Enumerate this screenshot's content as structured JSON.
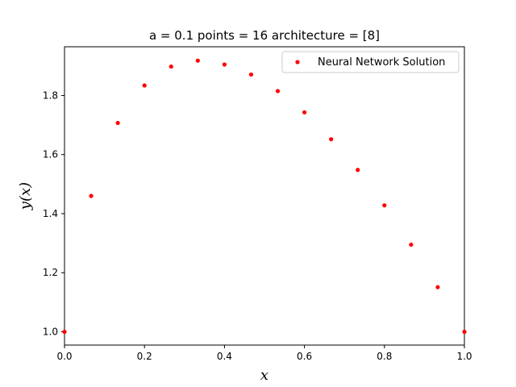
{
  "chart_data": {
    "type": "scatter",
    "title": "a = 0.1 points = 16 architecture = [8]",
    "xlabel": "x",
    "ylabel": "y(x)",
    "xlim": [
      0.0,
      1.0
    ],
    "ylim": [
      0.955,
      1.965
    ],
    "xticks": [
      "0.0",
      "0.2",
      "0.4",
      "0.6",
      "0.8",
      "1.0"
    ],
    "yticks": [
      "1.0",
      "1.2",
      "1.4",
      "1.6",
      "1.8"
    ],
    "grid": false,
    "legend_position": "top-right",
    "series": [
      {
        "name": "Neural Network Solution",
        "color": "#ff0000",
        "marker": "point",
        "x": [
          0.0,
          0.0667,
          0.1333,
          0.2,
          0.2667,
          0.3333,
          0.4,
          0.4667,
          0.5333,
          0.6,
          0.6667,
          0.7333,
          0.8,
          0.8667,
          0.9333,
          1.0
        ],
        "y": [
          1.0,
          1.46,
          1.707,
          1.834,
          1.898,
          1.918,
          1.905,
          1.871,
          1.815,
          1.743,
          1.652,
          1.548,
          1.428,
          1.295,
          1.151,
          1.0
        ]
      }
    ]
  }
}
